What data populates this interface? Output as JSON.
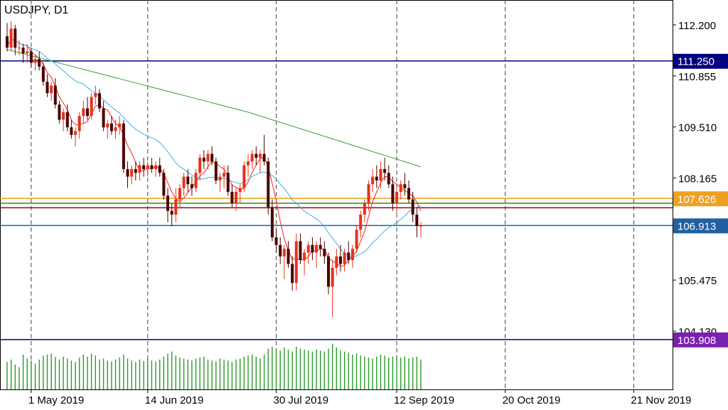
{
  "window": {
    "title": "USDJPY, D1"
  },
  "chart_data": {
    "type": "candlestick",
    "symbol": "USDJPY",
    "timeframe": "D1",
    "y_ticks": [
      "112.200",
      "110.855",
      "109.510",
      "108.165",
      "105.475",
      "104.130"
    ],
    "x_ticks": [
      "1 May 2019",
      "14 Jun 2019",
      "30 Jul 2019",
      "12 Sep 2019",
      "20 Oct 2019",
      "21 Nov 2019"
    ],
    "x_tick_candle_index": [
      6,
      35,
      67,
      97,
      124,
      156
    ],
    "horizontal_levels": [
      {
        "label": "111.250",
        "value": 111.25,
        "color": "#000080",
        "label_bg": "#000080"
      },
      {
        "label": "107.626",
        "value": 107.626,
        "color": "#f0a020",
        "label_bg": "#f0a020"
      },
      {
        "label": "",
        "value": 107.5,
        "color": "#3a8a1a",
        "label_bg": ""
      },
      {
        "label": "",
        "value": 107.38,
        "color": "#a00000",
        "label_bg": ""
      },
      {
        "label": "106.913",
        "value": 106.913,
        "color": "#2060a0",
        "label_bg": "#2060a0"
      },
      {
        "label": "103.908",
        "value": 103.908,
        "color": "#000080",
        "label_bg": "#7a20b0"
      }
    ],
    "colors": {
      "bull": "#e8311a",
      "bear": "#4a0000",
      "ma_fast": "#ff2020",
      "ma_mid": "#40b0e0",
      "ma_slow": "#30a030",
      "volume": "#2a9a2a",
      "grid": "#444444"
    },
    "candles_ohlc_approx": [
      [
        111.9,
        112.25,
        111.5,
        111.6
      ],
      [
        111.6,
        112.3,
        111.5,
        112.1
      ],
      [
        112.1,
        112.2,
        111.4,
        111.6
      ],
      [
        111.6,
        111.8,
        111.4,
        111.6
      ],
      [
        111.6,
        111.7,
        111.2,
        111.45
      ],
      [
        111.45,
        111.7,
        111.2,
        111.5
      ],
      [
        111.5,
        111.6,
        111.1,
        111.2
      ],
      [
        111.2,
        111.4,
        111.0,
        111.3
      ],
      [
        111.3,
        111.5,
        111.0,
        111.1
      ],
      [
        111.1,
        111.2,
        110.6,
        110.7
      ],
      [
        110.7,
        110.9,
        110.3,
        110.4
      ],
      [
        110.4,
        110.7,
        110.2,
        110.6
      ],
      [
        110.6,
        110.8,
        110.0,
        110.1
      ],
      [
        110.1,
        110.2,
        109.6,
        109.7
      ],
      [
        109.7,
        110.0,
        109.4,
        109.9
      ],
      [
        109.9,
        110.1,
        109.4,
        109.5
      ],
      [
        109.5,
        109.7,
        109.2,
        109.3
      ],
      [
        109.3,
        109.5,
        109.0,
        109.4
      ],
      [
        109.4,
        109.9,
        109.2,
        109.8
      ],
      [
        109.8,
        110.2,
        109.6,
        110.0
      ],
      [
        110.0,
        110.3,
        109.7,
        109.8
      ],
      [
        109.8,
        110.4,
        109.7,
        110.3
      ],
      [
        110.3,
        110.6,
        110.1,
        110.4
      ],
      [
        110.4,
        110.5,
        109.9,
        110.0
      ],
      [
        110.0,
        110.2,
        109.4,
        109.5
      ],
      [
        109.5,
        109.7,
        109.2,
        109.6
      ],
      [
        109.6,
        109.8,
        109.3,
        109.4
      ],
      [
        109.4,
        109.7,
        109.2,
        109.5
      ],
      [
        109.5,
        109.8,
        109.3,
        109.6
      ],
      [
        109.6,
        109.7,
        108.3,
        108.4
      ],
      [
        108.4,
        108.6,
        107.9,
        108.2
      ],
      [
        108.2,
        108.5,
        108.0,
        108.4
      ],
      [
        108.4,
        108.6,
        108.1,
        108.3
      ],
      [
        108.3,
        108.6,
        108.1,
        108.5
      ],
      [
        108.5,
        108.7,
        108.2,
        108.4
      ],
      [
        108.4,
        108.6,
        108.2,
        108.5
      ],
      [
        108.5,
        108.7,
        108.3,
        108.4
      ],
      [
        108.4,
        108.6,
        108.2,
        108.5
      ],
      [
        108.5,
        108.7,
        108.2,
        108.3
      ],
      [
        108.3,
        108.4,
        107.6,
        107.7
      ],
      [
        107.7,
        107.9,
        107.0,
        107.3
      ],
      [
        107.3,
        107.5,
        106.9,
        107.2
      ],
      [
        107.2,
        107.9,
        107.0,
        107.6
      ],
      [
        107.6,
        108.0,
        107.4,
        107.9
      ],
      [
        107.9,
        108.3,
        107.7,
        108.2
      ],
      [
        108.2,
        108.4,
        107.8,
        108.0
      ],
      [
        108.0,
        108.2,
        107.7,
        107.9
      ],
      [
        107.9,
        108.4,
        107.8,
        108.3
      ],
      [
        108.3,
        108.8,
        108.1,
        108.7
      ],
      [
        108.7,
        108.9,
        108.4,
        108.6
      ],
      [
        108.6,
        108.9,
        108.4,
        108.8
      ],
      [
        108.8,
        109.0,
        108.5,
        108.6
      ],
      [
        108.6,
        108.7,
        108.0,
        108.1
      ],
      [
        108.1,
        108.3,
        107.8,
        108.2
      ],
      [
        108.2,
        108.5,
        107.9,
        108.3
      ],
      [
        108.3,
        108.5,
        107.7,
        107.8
      ],
      [
        107.8,
        108.0,
        107.4,
        107.5
      ],
      [
        107.5,
        107.9,
        107.3,
        107.8
      ],
      [
        107.8,
        108.0,
        107.5,
        107.9
      ],
      [
        107.9,
        108.6,
        107.8,
        108.5
      ],
      [
        108.5,
        108.8,
        108.2,
        108.6
      ],
      [
        108.6,
        108.9,
        108.4,
        108.8
      ],
      [
        108.8,
        109.0,
        108.5,
        108.7
      ],
      [
        108.7,
        108.9,
        108.3,
        108.8
      ],
      [
        108.8,
        109.3,
        108.5,
        108.6
      ],
      [
        108.6,
        108.7,
        107.2,
        107.4
      ],
      [
        107.4,
        107.6,
        106.5,
        106.6
      ],
      [
        106.6,
        106.8,
        106.2,
        106.4
      ],
      [
        106.4,
        106.6,
        105.9,
        106.1
      ],
      [
        106.1,
        106.4,
        105.5,
        106.3
      ],
      [
        106.3,
        106.5,
        105.8,
        105.9
      ],
      [
        105.9,
        106.1,
        105.2,
        105.4
      ],
      [
        105.4,
        106.7,
        105.2,
        106.5
      ],
      [
        106.5,
        106.7,
        105.9,
        106.0
      ],
      [
        106.0,
        106.3,
        105.6,
        106.2
      ],
      [
        106.2,
        106.5,
        105.9,
        106.4
      ],
      [
        106.4,
        106.6,
        106.0,
        106.2
      ],
      [
        106.2,
        106.5,
        105.8,
        106.4
      ],
      [
        106.4,
        106.6,
        106.1,
        106.3
      ],
      [
        106.3,
        106.5,
        105.9,
        106.1
      ],
      [
        106.1,
        106.2,
        105.1,
        105.3
      ],
      [
        105.3,
        106.0,
        104.5,
        105.8
      ],
      [
        105.8,
        106.3,
        105.6,
        106.1
      ],
      [
        106.1,
        106.4,
        105.7,
        105.9
      ],
      [
        105.9,
        106.3,
        105.7,
        106.2
      ],
      [
        106.2,
        106.5,
        105.9,
        106.0
      ],
      [
        106.0,
        106.4,
        105.8,
        106.3
      ],
      [
        106.3,
        106.9,
        106.2,
        106.8
      ],
      [
        106.8,
        107.3,
        106.6,
        107.2
      ],
      [
        107.2,
        107.6,
        107.0,
        107.5
      ],
      [
        107.5,
        108.1,
        107.3,
        108.0
      ],
      [
        108.0,
        108.4,
        107.8,
        108.2
      ],
      [
        108.2,
        108.5,
        107.9,
        108.1
      ],
      [
        108.1,
        108.6,
        107.9,
        108.4
      ],
      [
        108.4,
        108.7,
        108.1,
        108.3
      ],
      [
        108.3,
        108.5,
        107.9,
        108.0
      ],
      [
        108.0,
        108.2,
        107.3,
        107.5
      ],
      [
        107.5,
        107.9,
        107.2,
        107.8
      ],
      [
        107.8,
        108.1,
        107.6,
        108.0
      ],
      [
        108.0,
        108.3,
        107.7,
        107.9
      ],
      [
        107.9,
        108.1,
        107.5,
        107.6
      ],
      [
        107.6,
        107.8,
        107.0,
        107.2
      ],
      [
        107.2,
        107.4,
        106.6,
        106.9
      ],
      [
        106.9,
        107.0,
        106.6,
        106.9
      ]
    ],
    "volume_approx": [
      0.55,
      0.6,
      0.5,
      0.45,
      0.7,
      0.62,
      0.58,
      0.52,
      0.6,
      0.68,
      0.7,
      0.72,
      0.65,
      0.6,
      0.66,
      0.62,
      0.58,
      0.55,
      0.64,
      0.7,
      0.66,
      0.72,
      0.68,
      0.6,
      0.62,
      0.58,
      0.56,
      0.6,
      0.64,
      0.7,
      0.62,
      0.58,
      0.55,
      0.6,
      0.57,
      0.62,
      0.58,
      0.56,
      0.6,
      0.66,
      0.72,
      0.76,
      0.68,
      0.64,
      0.62,
      0.6,
      0.58,
      0.62,
      0.64,
      0.66,
      0.6,
      0.58,
      0.56,
      0.62,
      0.6,
      0.58,
      0.55,
      0.6,
      0.62,
      0.66,
      0.68,
      0.7,
      0.66,
      0.62,
      0.7,
      0.82,
      0.86,
      0.8,
      0.78,
      0.84,
      0.8,
      0.76,
      0.86,
      0.82,
      0.8,
      0.78,
      0.76,
      0.8,
      0.78,
      0.76,
      0.82,
      0.92,
      0.84,
      0.78,
      0.76,
      0.74,
      0.7,
      0.72,
      0.68,
      0.66,
      0.64,
      0.62,
      0.66,
      0.7,
      0.68,
      0.64,
      0.66,
      0.68,
      0.64,
      0.66,
      0.62,
      0.64,
      0.66,
      0.6
    ]
  }
}
